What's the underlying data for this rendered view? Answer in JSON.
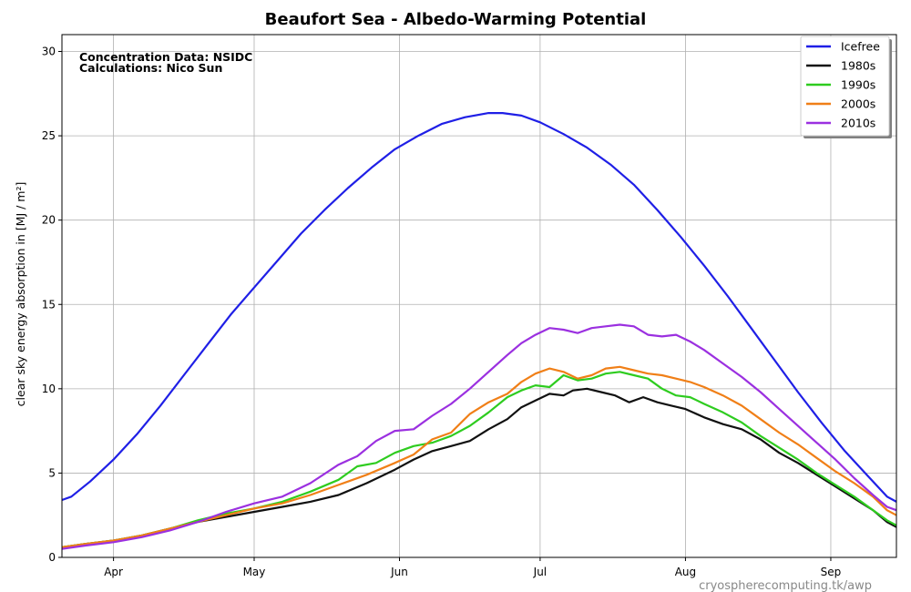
{
  "chart_data": {
    "type": "line",
    "title": "Beaufort Sea - Albedo-Warming Potential",
    "ylabel": "clear sky energy absorption in  [MJ / m²]",
    "xlabel": "",
    "ylim": [
      0,
      31
    ],
    "yticks": [
      0,
      5,
      10,
      15,
      20,
      25,
      30
    ],
    "xlim": [
      80,
      258
    ],
    "xticks": [
      {
        "day": 91,
        "label": "Apr"
      },
      {
        "day": 121,
        "label": "May"
      },
      {
        "day": 152,
        "label": "Jun"
      },
      {
        "day": 182,
        "label": "Jul"
      },
      {
        "day": 213,
        "label": "Aug"
      },
      {
        "day": 244,
        "label": "Sep"
      }
    ],
    "grid": true,
    "legend_position": "top-right",
    "annotations": [
      "Concentration Data: NSIDC",
      "Calculations: Nico Sun"
    ],
    "footer": "cryospherecomputing.tk/awp",
    "x_unit": "day of year",
    "series": [
      {
        "name": "Icefree",
        "color": "#1f1fe6",
        "points": [
          [
            80,
            3.4
          ],
          [
            82,
            3.6
          ],
          [
            86,
            4.5
          ],
          [
            91,
            5.8
          ],
          [
            96,
            7.3
          ],
          [
            101,
            9.0
          ],
          [
            106,
            10.8
          ],
          [
            111,
            12.6
          ],
          [
            116,
            14.4
          ],
          [
            121,
            16.0
          ],
          [
            126,
            17.6
          ],
          [
            131,
            19.2
          ],
          [
            136,
            20.6
          ],
          [
            141,
            21.9
          ],
          [
            146,
            23.1
          ],
          [
            151,
            24.2
          ],
          [
            156,
            25.0
          ],
          [
            161,
            25.7
          ],
          [
            166,
            26.1
          ],
          [
            171,
            26.35
          ],
          [
            174,
            26.35
          ],
          [
            178,
            26.2
          ],
          [
            182,
            25.8
          ],
          [
            187,
            25.1
          ],
          [
            192,
            24.3
          ],
          [
            197,
            23.3
          ],
          [
            202,
            22.1
          ],
          [
            207,
            20.6
          ],
          [
            212,
            19.0
          ],
          [
            217,
            17.3
          ],
          [
            222,
            15.5
          ],
          [
            227,
            13.6
          ],
          [
            232,
            11.7
          ],
          [
            237,
            9.8
          ],
          [
            242,
            8.0
          ],
          [
            247,
            6.3
          ],
          [
            252,
            4.8
          ],
          [
            256,
            3.6
          ],
          [
            258,
            3.3
          ]
        ]
      },
      {
        "name": "1980s",
        "color": "#111111",
        "points": [
          [
            80,
            0.6
          ],
          [
            85,
            0.8
          ],
          [
            91,
            1.0
          ],
          [
            97,
            1.3
          ],
          [
            103,
            1.7
          ],
          [
            109,
            2.1
          ],
          [
            115,
            2.4
          ],
          [
            121,
            2.7
          ],
          [
            127,
            3.0
          ],
          [
            133,
            3.3
          ],
          [
            139,
            3.7
          ],
          [
            145,
            4.4
          ],
          [
            151,
            5.2
          ],
          [
            155,
            5.8
          ],
          [
            159,
            6.3
          ],
          [
            163,
            6.6
          ],
          [
            167,
            6.9
          ],
          [
            171,
            7.6
          ],
          [
            175,
            8.2
          ],
          [
            178,
            8.9
          ],
          [
            181,
            9.3
          ],
          [
            184,
            9.7
          ],
          [
            187,
            9.6
          ],
          [
            189,
            9.9
          ],
          [
            192,
            10.0
          ],
          [
            195,
            9.8
          ],
          [
            198,
            9.6
          ],
          [
            201,
            9.2
          ],
          [
            204,
            9.5
          ],
          [
            207,
            9.2
          ],
          [
            210,
            9.0
          ],
          [
            213,
            8.8
          ],
          [
            217,
            8.3
          ],
          [
            221,
            7.9
          ],
          [
            225,
            7.6
          ],
          [
            229,
            7.0
          ],
          [
            233,
            6.2
          ],
          [
            237,
            5.6
          ],
          [
            241,
            4.9
          ],
          [
            245,
            4.2
          ],
          [
            249,
            3.5
          ],
          [
            253,
            2.8
          ],
          [
            256,
            2.1
          ],
          [
            258,
            1.8
          ]
        ]
      },
      {
        "name": "1990s",
        "color": "#2ecc1f",
        "points": [
          [
            80,
            0.6
          ],
          [
            85,
            0.8
          ],
          [
            91,
            1.0
          ],
          [
            97,
            1.3
          ],
          [
            103,
            1.7
          ],
          [
            109,
            2.2
          ],
          [
            115,
            2.6
          ],
          [
            121,
            2.9
          ],
          [
            127,
            3.3
          ],
          [
            133,
            3.9
          ],
          [
            139,
            4.6
          ],
          [
            143,
            5.4
          ],
          [
            147,
            5.6
          ],
          [
            151,
            6.2
          ],
          [
            155,
            6.6
          ],
          [
            159,
            6.8
          ],
          [
            163,
            7.2
          ],
          [
            167,
            7.8
          ],
          [
            171,
            8.6
          ],
          [
            175,
            9.5
          ],
          [
            178,
            9.9
          ],
          [
            181,
            10.2
          ],
          [
            184,
            10.1
          ],
          [
            187,
            10.8
          ],
          [
            190,
            10.5
          ],
          [
            193,
            10.6
          ],
          [
            196,
            10.9
          ],
          [
            199,
            11.0
          ],
          [
            202,
            10.8
          ],
          [
            205,
            10.6
          ],
          [
            208,
            10.0
          ],
          [
            211,
            9.6
          ],
          [
            214,
            9.5
          ],
          [
            217,
            9.1
          ],
          [
            221,
            8.6
          ],
          [
            225,
            8.0
          ],
          [
            229,
            7.2
          ],
          [
            233,
            6.5
          ],
          [
            237,
            5.8
          ],
          [
            241,
            5.0
          ],
          [
            245,
            4.3
          ],
          [
            249,
            3.6
          ],
          [
            253,
            2.8
          ],
          [
            256,
            2.2
          ],
          [
            258,
            1.9
          ]
        ]
      },
      {
        "name": "2000s",
        "color": "#f07f17",
        "points": [
          [
            80,
            0.6
          ],
          [
            85,
            0.8
          ],
          [
            91,
            1.0
          ],
          [
            97,
            1.3
          ],
          [
            103,
            1.7
          ],
          [
            109,
            2.1
          ],
          [
            115,
            2.5
          ],
          [
            121,
            2.9
          ],
          [
            127,
            3.2
          ],
          [
            133,
            3.7
          ],
          [
            139,
            4.3
          ],
          [
            145,
            4.9
          ],
          [
            151,
            5.6
          ],
          [
            155,
            6.1
          ],
          [
            159,
            7.0
          ],
          [
            163,
            7.4
          ],
          [
            167,
            8.5
          ],
          [
            171,
            9.2
          ],
          [
            175,
            9.7
          ],
          [
            178,
            10.4
          ],
          [
            181,
            10.9
          ],
          [
            184,
            11.2
          ],
          [
            187,
            11.0
          ],
          [
            190,
            10.6
          ],
          [
            193,
            10.8
          ],
          [
            196,
            11.2
          ],
          [
            199,
            11.3
          ],
          [
            202,
            11.1
          ],
          [
            205,
            10.9
          ],
          [
            208,
            10.8
          ],
          [
            211,
            10.6
          ],
          [
            214,
            10.4
          ],
          [
            217,
            10.1
          ],
          [
            221,
            9.6
          ],
          [
            225,
            9.0
          ],
          [
            229,
            8.2
          ],
          [
            233,
            7.4
          ],
          [
            237,
            6.7
          ],
          [
            241,
            5.9
          ],
          [
            245,
            5.1
          ],
          [
            249,
            4.4
          ],
          [
            253,
            3.6
          ],
          [
            256,
            2.8
          ],
          [
            258,
            2.5
          ]
        ]
      },
      {
        "name": "2010s",
        "color": "#9b30e0",
        "points": [
          [
            80,
            0.5
          ],
          [
            85,
            0.7
          ],
          [
            91,
            0.9
          ],
          [
            97,
            1.2
          ],
          [
            103,
            1.6
          ],
          [
            109,
            2.1
          ],
          [
            115,
            2.7
          ],
          [
            121,
            3.2
          ],
          [
            127,
            3.6
          ],
          [
            133,
            4.4
          ],
          [
            139,
            5.5
          ],
          [
            143,
            6.0
          ],
          [
            147,
            6.9
          ],
          [
            151,
            7.5
          ],
          [
            155,
            7.6
          ],
          [
            159,
            8.4
          ],
          [
            163,
            9.1
          ],
          [
            167,
            10.0
          ],
          [
            171,
            11.0
          ],
          [
            175,
            12.0
          ],
          [
            178,
            12.7
          ],
          [
            181,
            13.2
          ],
          [
            184,
            13.6
          ],
          [
            187,
            13.5
          ],
          [
            190,
            13.3
          ],
          [
            193,
            13.6
          ],
          [
            196,
            13.7
          ],
          [
            199,
            13.8
          ],
          [
            202,
            13.7
          ],
          [
            205,
            13.2
          ],
          [
            208,
            13.1
          ],
          [
            211,
            13.2
          ],
          [
            214,
            12.8
          ],
          [
            217,
            12.3
          ],
          [
            221,
            11.5
          ],
          [
            225,
            10.7
          ],
          [
            229,
            9.8
          ],
          [
            233,
            8.8
          ],
          [
            237,
            7.8
          ],
          [
            241,
            6.8
          ],
          [
            245,
            5.8
          ],
          [
            249,
            4.7
          ],
          [
            253,
            3.7
          ],
          [
            256,
            3.0
          ],
          [
            258,
            2.8
          ]
        ]
      }
    ]
  }
}
